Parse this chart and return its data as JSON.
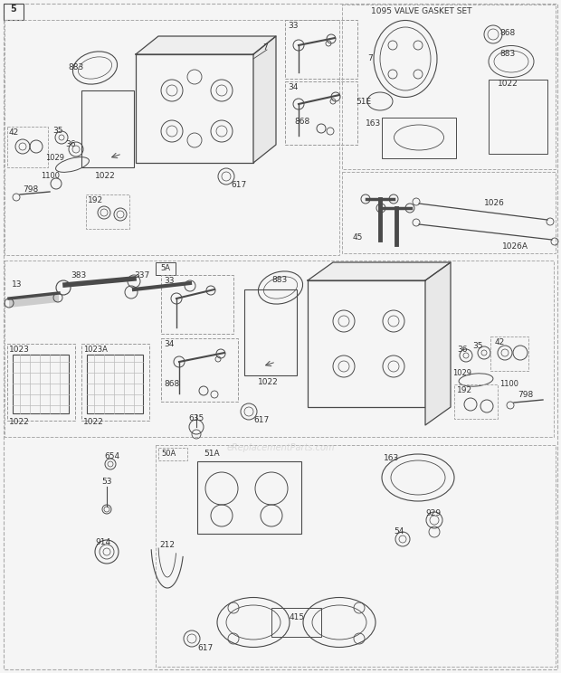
{
  "bg_color": "#f5f5f5",
  "line_color": "#4a4a4a",
  "text_color": "#333333",
  "dash_color": "#888888",
  "watermark": "eReplacementParts.com",
  "page_num": "5",
  "gasket_title": "1095 VALVE GASKET SET",
  "figsize": [
    6.2,
    7.44
  ],
  "dpi": 100
}
